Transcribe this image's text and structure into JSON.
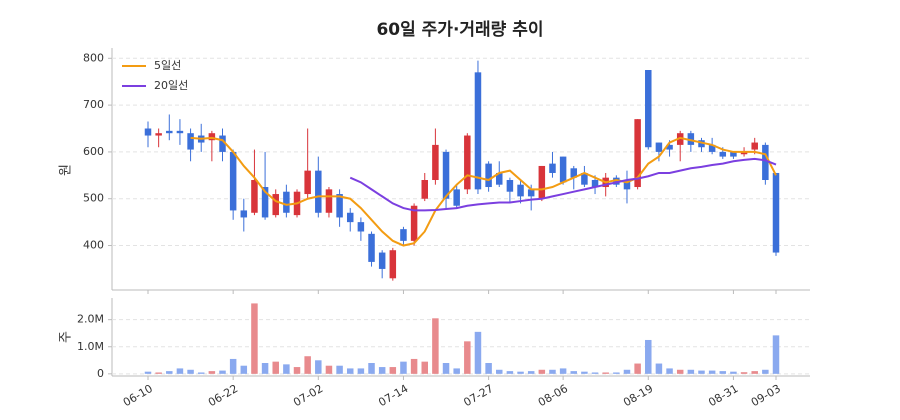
{
  "chart_data": [
    {
      "type": "candlestick",
      "title": "60일 주가·거래량 추이",
      "ylabel": "원",
      "open": [
        650,
        635,
        645,
        645,
        640,
        635,
        625,
        635,
        600,
        475,
        470,
        525,
        465,
        515,
        465,
        510,
        560,
        470,
        510,
        470,
        450,
        425,
        385,
        330,
        435,
        410,
        500,
        540,
        600,
        520,
        520,
        770,
        575,
        555,
        540,
        530,
        520,
        500,
        575,
        590,
        565,
        555,
        540,
        525,
        545,
        540,
        525,
        775,
        620,
        615,
        615,
        640,
        625,
        615,
        600,
        600,
        595,
        605,
        615,
        555
      ],
      "high": [
        665,
        650,
        680,
        670,
        650,
        660,
        645,
        650,
        605,
        500,
        605,
        600,
        520,
        530,
        520,
        650,
        590,
        525,
        520,
        480,
        460,
        430,
        390,
        395,
        440,
        490,
        555,
        650,
        605,
        530,
        640,
        795,
        580,
        580,
        545,
        540,
        530,
        570,
        600,
        590,
        570,
        570,
        550,
        555,
        550,
        560,
        670,
        775,
        620,
        625,
        645,
        645,
        630,
        630,
        610,
        600,
        610,
        630,
        620,
        555
      ],
      "low": [
        610,
        610,
        625,
        615,
        580,
        600,
        580,
        580,
        455,
        430,
        465,
        455,
        460,
        460,
        460,
        500,
        460,
        460,
        440,
        430,
        410,
        355,
        330,
        325,
        400,
        400,
        495,
        530,
        480,
        480,
        510,
        510,
        515,
        525,
        490,
        490,
        475,
        495,
        545,
        530,
        520,
        525,
        510,
        505,
        525,
        490,
        520,
        605,
        580,
        590,
        580,
        600,
        600,
        595,
        585,
        585,
        590,
        595,
        530,
        378
      ],
      "close": [
        635,
        640,
        640,
        640,
        605,
        620,
        640,
        600,
        475,
        460,
        540,
        460,
        510,
        470,
        515,
        560,
        470,
        520,
        460,
        450,
        430,
        365,
        350,
        390,
        410,
        485,
        540,
        615,
        500,
        485,
        635,
        520,
        525,
        530,
        515,
        505,
        505,
        570,
        555,
        535,
        545,
        530,
        525,
        545,
        530,
        520,
        670,
        610,
        600,
        605,
        640,
        615,
        610,
        600,
        590,
        590,
        600,
        620,
        540,
        385
      ],
      "up_color": "#d8343a",
      "down_color": "#3b6fd9",
      "series": [
        {
          "name": "5일선",
          "color": "#f39c12",
          "values": [
            null,
            null,
            null,
            null,
            630,
            628,
            630,
            625,
            600,
            570,
            545,
            515,
            495,
            487,
            490,
            500,
            505,
            505,
            505,
            500,
            480,
            455,
            430,
            410,
            400,
            405,
            430,
            475,
            505,
            530,
            550,
            545,
            540,
            555,
            560,
            540,
            520,
            520,
            525,
            535,
            545,
            555,
            545,
            535,
            540,
            535,
            545,
            575,
            590,
            620,
            630,
            625,
            620,
            615,
            605,
            600,
            600,
            600,
            595,
            550
          ]
        },
        {
          "name": "20일선",
          "color": "#7b3fe0",
          "values": [
            null,
            null,
            null,
            null,
            null,
            null,
            null,
            null,
            null,
            null,
            null,
            null,
            null,
            null,
            null,
            null,
            null,
            null,
            null,
            545,
            535,
            520,
            505,
            490,
            480,
            475,
            475,
            476,
            478,
            480,
            485,
            488,
            490,
            492,
            492,
            495,
            498,
            500,
            505,
            510,
            515,
            520,
            525,
            530,
            535,
            540,
            543,
            548,
            555,
            555,
            560,
            565,
            568,
            572,
            575,
            580,
            583,
            585,
            582,
            573
          ]
        }
      ],
      "legend": "upper left",
      "grid": true,
      "ylim": [
        305,
        822
      ],
      "yticks": [
        400,
        500,
        600,
        700,
        800
      ]
    },
    {
      "type": "bar",
      "ylabel": "주",
      "categories": [
        "06-10",
        null,
        null,
        null,
        null,
        null,
        null,
        null,
        "06-22",
        null,
        null,
        null,
        null,
        null,
        null,
        null,
        "07-02",
        null,
        null,
        null,
        null,
        null,
        null,
        null,
        "07-14",
        null,
        null,
        null,
        null,
        null,
        null,
        null,
        "07-27",
        null,
        null,
        null,
        null,
        null,
        null,
        "08-06",
        null,
        null,
        null,
        null,
        null,
        null,
        null,
        "08-19",
        null,
        null,
        null,
        null,
        null,
        null,
        null,
        "08-31",
        null,
        null,
        null,
        "09-03"
      ],
      "values": [
        80000,
        50000,
        100000,
        200000,
        150000,
        50000,
        100000,
        120000,
        550000,
        300000,
        2600000,
        400000,
        450000,
        350000,
        250000,
        650000,
        500000,
        300000,
        300000,
        200000,
        200000,
        400000,
        250000,
        250000,
        450000,
        550000,
        450000,
        2050000,
        400000,
        200000,
        1200000,
        1550000,
        400000,
        150000,
        100000,
        80000,
        100000,
        150000,
        150000,
        200000,
        100000,
        80000,
        50000,
        50000,
        50000,
        150000,
        380000,
        1250000,
        380000,
        200000,
        150000,
        150000,
        120000,
        120000,
        100000,
        80000,
        60000,
        100000,
        150000,
        1420000
      ],
      "up_color": "#e88a8d",
      "down_color": "#8aa9ef",
      "grid": true,
      "ylim": [
        -80000,
        2800000
      ],
      "yticks": [
        0,
        {
          "value": 1000000,
          "label": "1.0M"
        },
        {
          "value": 2000000,
          "label": "2.0M"
        }
      ]
    }
  ]
}
